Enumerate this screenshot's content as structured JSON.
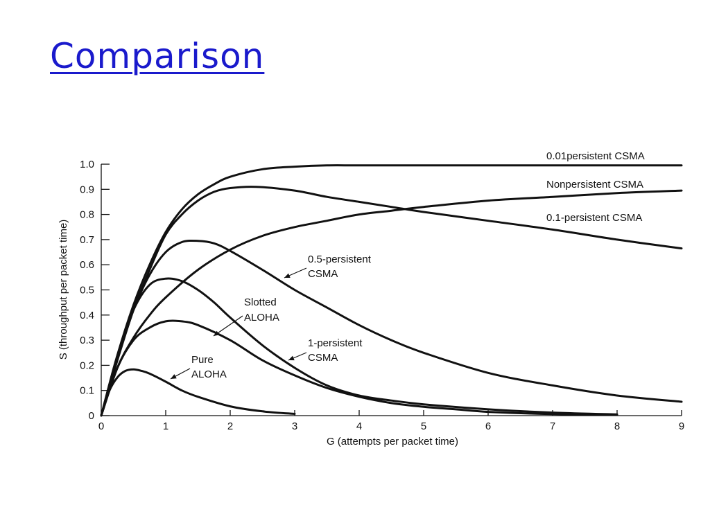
{
  "slide": {
    "title": "Comparison"
  },
  "chart_data": {
    "type": "line",
    "title": "",
    "xlabel": "G (attempts per packet time)",
    "ylabel": "S (throughput per packet time)",
    "xlim": [
      0,
      9
    ],
    "ylim": [
      0,
      1.0
    ],
    "x_ticks": [
      "0",
      "1",
      "2",
      "3",
      "4",
      "5",
      "6",
      "7",
      "8",
      "9"
    ],
    "y_ticks": [
      "0",
      "0.1",
      "0.2",
      "0.3",
      "0.4",
      "0.5",
      "0.6",
      "0.7",
      "0.8",
      "0.9",
      "1.0"
    ],
    "grid": false,
    "series": [
      {
        "name": "0.01persistent CSMA",
        "label_lines": [
          "0.01persistent CSMA"
        ],
        "x": [
          0,
          0.25,
          0.5,
          0.75,
          1,
          1.25,
          1.5,
          1.75,
          2,
          2.5,
          3,
          3.5,
          4,
          5,
          6,
          7,
          8,
          9
        ],
        "y": [
          0,
          0.24,
          0.44,
          0.6,
          0.73,
          0.82,
          0.88,
          0.92,
          0.95,
          0.98,
          0.99,
          0.995,
          0.995,
          0.995,
          0.995,
          0.995,
          0.995,
          0.995
        ]
      },
      {
        "name": "Nonpersistent CSMA",
        "label_lines": [
          "Nonpersistent CSMA"
        ],
        "x": [
          0,
          0.25,
          0.5,
          0.75,
          1,
          1.25,
          1.5,
          1.75,
          2,
          2.4,
          3,
          3.5,
          4,
          4.5,
          5,
          6,
          7,
          8,
          9
        ],
        "y": [
          0,
          0.22,
          0.42,
          0.58,
          0.72,
          0.8,
          0.855,
          0.89,
          0.905,
          0.91,
          0.895,
          0.87,
          0.85,
          0.83,
          0.81,
          0.775,
          0.74,
          0.7,
          0.665
        ]
      },
      {
        "name": "0.1-persistent CSMA",
        "label_lines": [
          "0.1-persistent CSMA"
        ],
        "x": [
          0,
          0.25,
          0.5,
          0.75,
          1,
          1.5,
          2,
          2.5,
          3,
          3.5,
          4,
          4.5,
          5,
          6,
          7,
          8,
          9
        ],
        "y": [
          0,
          0.19,
          0.31,
          0.4,
          0.47,
          0.58,
          0.66,
          0.715,
          0.75,
          0.775,
          0.8,
          0.815,
          0.83,
          0.855,
          0.87,
          0.885,
          0.895
        ]
      },
      {
        "name": "0.5-persistent CSMA",
        "label_lines": [
          "0.5-persistent",
          "CSMA"
        ],
        "x": [
          0,
          0.25,
          0.5,
          0.75,
          1,
          1.25,
          1.5,
          1.75,
          2,
          2.5,
          3,
          3.5,
          4,
          4.5,
          5,
          6,
          7,
          8,
          9
        ],
        "y": [
          0,
          0.23,
          0.42,
          0.56,
          0.65,
          0.69,
          0.695,
          0.685,
          0.655,
          0.58,
          0.5,
          0.43,
          0.36,
          0.3,
          0.25,
          0.17,
          0.12,
          0.08,
          0.055
        ]
      },
      {
        "name": "Slotted ALOHA",
        "label_lines": [
          "Slotted",
          "ALOHA"
        ],
        "x": [
          0,
          0.25,
          0.5,
          0.75,
          1,
          1.25,
          1.5,
          2,
          2.5,
          3,
          3.5,
          4,
          4.5,
          5,
          5.5,
          6,
          7,
          8
        ],
        "y": [
          0,
          0.19,
          0.3,
          0.35,
          0.375,
          0.375,
          0.36,
          0.3,
          0.22,
          0.16,
          0.11,
          0.075,
          0.05,
          0.035,
          0.025,
          0.015,
          0.006,
          0.003
        ]
      },
      {
        "name": "1-persistent CSMA",
        "label_lines": [
          "1-persistent",
          "CSMA"
        ],
        "x": [
          0,
          0.25,
          0.5,
          0.75,
          1,
          1.25,
          1.5,
          1.75,
          2,
          2.5,
          3,
          3.5,
          4,
          4.5,
          5,
          6,
          7,
          8
        ],
        "y": [
          0,
          0.24,
          0.42,
          0.52,
          0.545,
          0.535,
          0.5,
          0.45,
          0.39,
          0.28,
          0.19,
          0.12,
          0.08,
          0.06,
          0.045,
          0.025,
          0.012,
          0.005
        ]
      },
      {
        "name": "Pure ALOHA",
        "label_lines": [
          "Pure",
          "ALOHA"
        ],
        "x": [
          0,
          0.125,
          0.25,
          0.375,
          0.5,
          0.625,
          0.75,
          1,
          1.25,
          1.5,
          2,
          2.5,
          3
        ],
        "y": [
          0,
          0.098,
          0.152,
          0.178,
          0.184,
          0.178,
          0.167,
          0.135,
          0.1,
          0.075,
          0.037,
          0.017,
          0.007
        ]
      }
    ]
  }
}
